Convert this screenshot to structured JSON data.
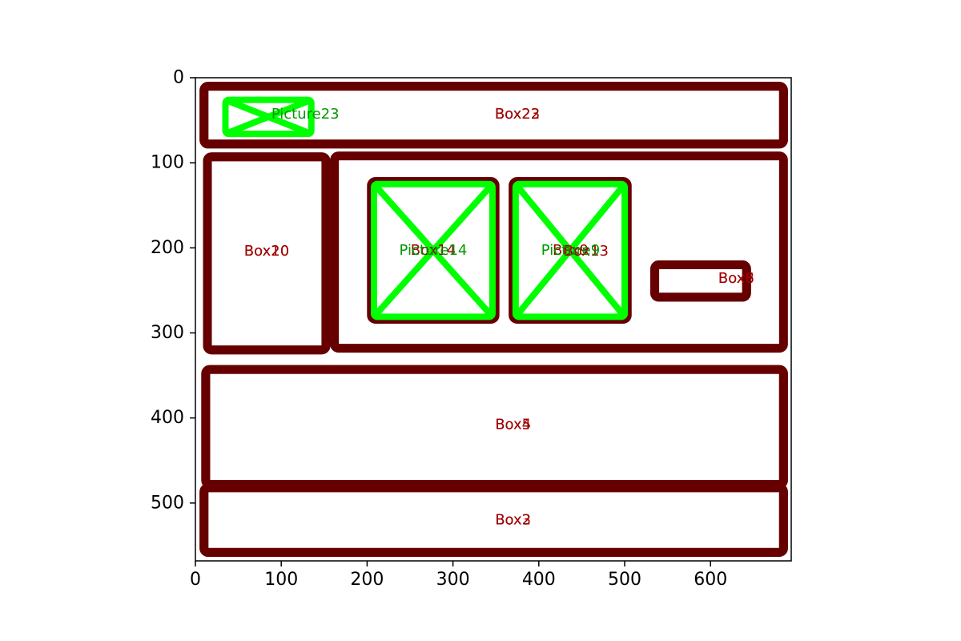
{
  "chart_data": {
    "type": "diagram",
    "xlim": [
      0,
      694
    ],
    "ylim": [
      568,
      0
    ],
    "x_ticks": [
      0,
      100,
      200,
      300,
      400,
      500,
      600
    ],
    "y_ticks": [
      0,
      100,
      200,
      300,
      400,
      500
    ],
    "colors": {
      "box": "#660000",
      "box_text": "#a00000",
      "picture": "#00ff00",
      "picture_text": "#009900"
    },
    "elements": [
      {
        "kind": "box",
        "label": "Box22",
        "x0": 10,
        "y0": 10,
        "x1": 685,
        "y1": 78,
        "label_x": 375,
        "label_y": 43
      },
      {
        "kind": "box",
        "label": "Box23",
        "x0": 10,
        "y0": 10,
        "x1": 685,
        "y1": 78,
        "label_x": 375,
        "label_y": 43
      },
      {
        "kind": "picture",
        "label": "Picture23",
        "x0": 35,
        "y0": 26,
        "x1": 135,
        "y1": 66,
        "label_x": 128,
        "label_y": 43
      },
      {
        "kind": "box",
        "label": "Box20",
        "x0": 14,
        "y0": 93,
        "x1": 152,
        "y1": 320,
        "label_x": 83,
        "label_y": 204
      },
      {
        "kind": "box",
        "label": "Box10",
        "x0": 14,
        "y0": 93,
        "x1": 152,
        "y1": 320,
        "label_x": 83,
        "label_y": 204
      },
      {
        "kind": "box",
        "label": "Box13",
        "x0": 162,
        "y0": 92,
        "x1": 685,
        "y1": 318,
        "label_x": 455,
        "label_y": 204
      },
      {
        "kind": "box",
        "label": "Box14",
        "x0": 205,
        "y0": 122,
        "x1": 349,
        "y1": 284,
        "label_x": 277,
        "label_y": 203
      },
      {
        "kind": "picture",
        "label": "Picture14",
        "x0": 208,
        "y0": 125,
        "x1": 346,
        "y1": 281,
        "label_x": 277,
        "label_y": 203
      },
      {
        "kind": "box",
        "label": "Box9",
        "x0": 370,
        "y0": 122,
        "x1": 503,
        "y1": 284,
        "label_x": 437,
        "label_y": 203
      },
      {
        "kind": "picture",
        "label": "Picture9",
        "x0": 373,
        "y0": 125,
        "x1": 500,
        "y1": 281,
        "label_x": 437,
        "label_y": 203
      },
      {
        "kind": "box",
        "label": "Box8",
        "x0": 535,
        "y0": 220,
        "x1": 642,
        "y1": 258,
        "label_x": 630,
        "label_y": 236
      },
      {
        "kind": "box",
        "label": "Box6",
        "x0": 535,
        "y0": 220,
        "x1": 642,
        "y1": 258,
        "label_x": 630,
        "label_y": 236
      },
      {
        "kind": "box",
        "label": "Box4",
        "x0": 12,
        "y0": 343,
        "x1": 685,
        "y1": 478,
        "label_x": 370,
        "label_y": 408
      },
      {
        "kind": "box",
        "label": "Box5",
        "x0": 12,
        "y0": 343,
        "x1": 685,
        "y1": 478,
        "label_x": 370,
        "label_y": 408
      },
      {
        "kind": "box",
        "label": "Box2",
        "x0": 10,
        "y0": 482,
        "x1": 685,
        "y1": 558,
        "label_x": 370,
        "label_y": 520
      },
      {
        "kind": "box",
        "label": "Box3",
        "x0": 10,
        "y0": 482,
        "x1": 685,
        "y1": 558,
        "label_x": 370,
        "label_y": 520
      }
    ]
  }
}
